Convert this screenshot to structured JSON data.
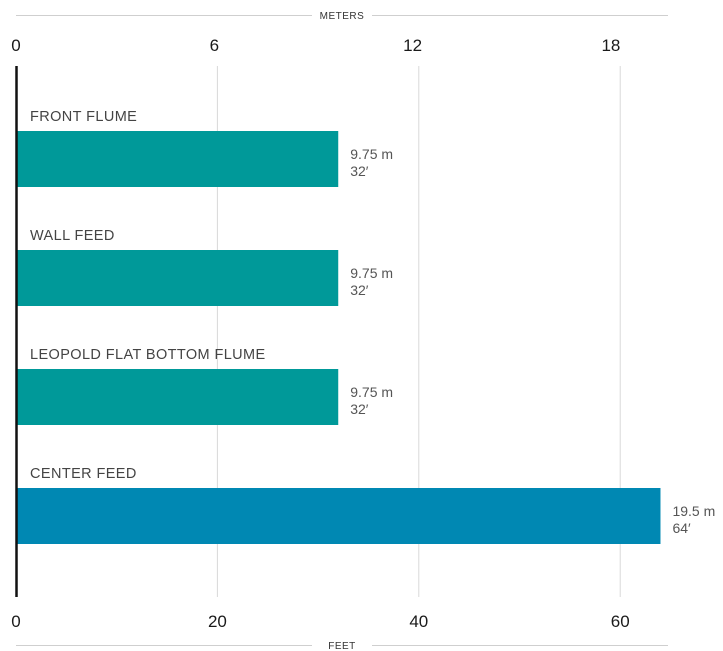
{
  "chart_data": {
    "type": "bar",
    "orientation": "horizontal",
    "top_axis": {
      "title": "METERS",
      "range": [
        0,
        19.5
      ],
      "ticks": [
        0,
        6,
        12,
        18
      ]
    },
    "bottom_axis": {
      "title": "FEET",
      "range": [
        0,
        64
      ],
      "ticks": [
        0,
        20,
        40,
        60
      ]
    },
    "grid": true,
    "categories": [
      "FRONT FLUME",
      "WALL FEED",
      "LEOPOLD FLAT BOTTOM FLUME",
      "CENTER FEED"
    ],
    "values_m": [
      9.75,
      9.75,
      9.75,
      19.5
    ],
    "values_ft": [
      32,
      32,
      32,
      64
    ],
    "labels_m": [
      "9.75 m",
      "9.75 m",
      "9.75 m",
      "19.5 m"
    ],
    "labels_ft": [
      "32′",
      "32′",
      "32′",
      "64′"
    ],
    "colors": [
      "#009999",
      "#009999",
      "#009999",
      "#0088b3"
    ]
  }
}
